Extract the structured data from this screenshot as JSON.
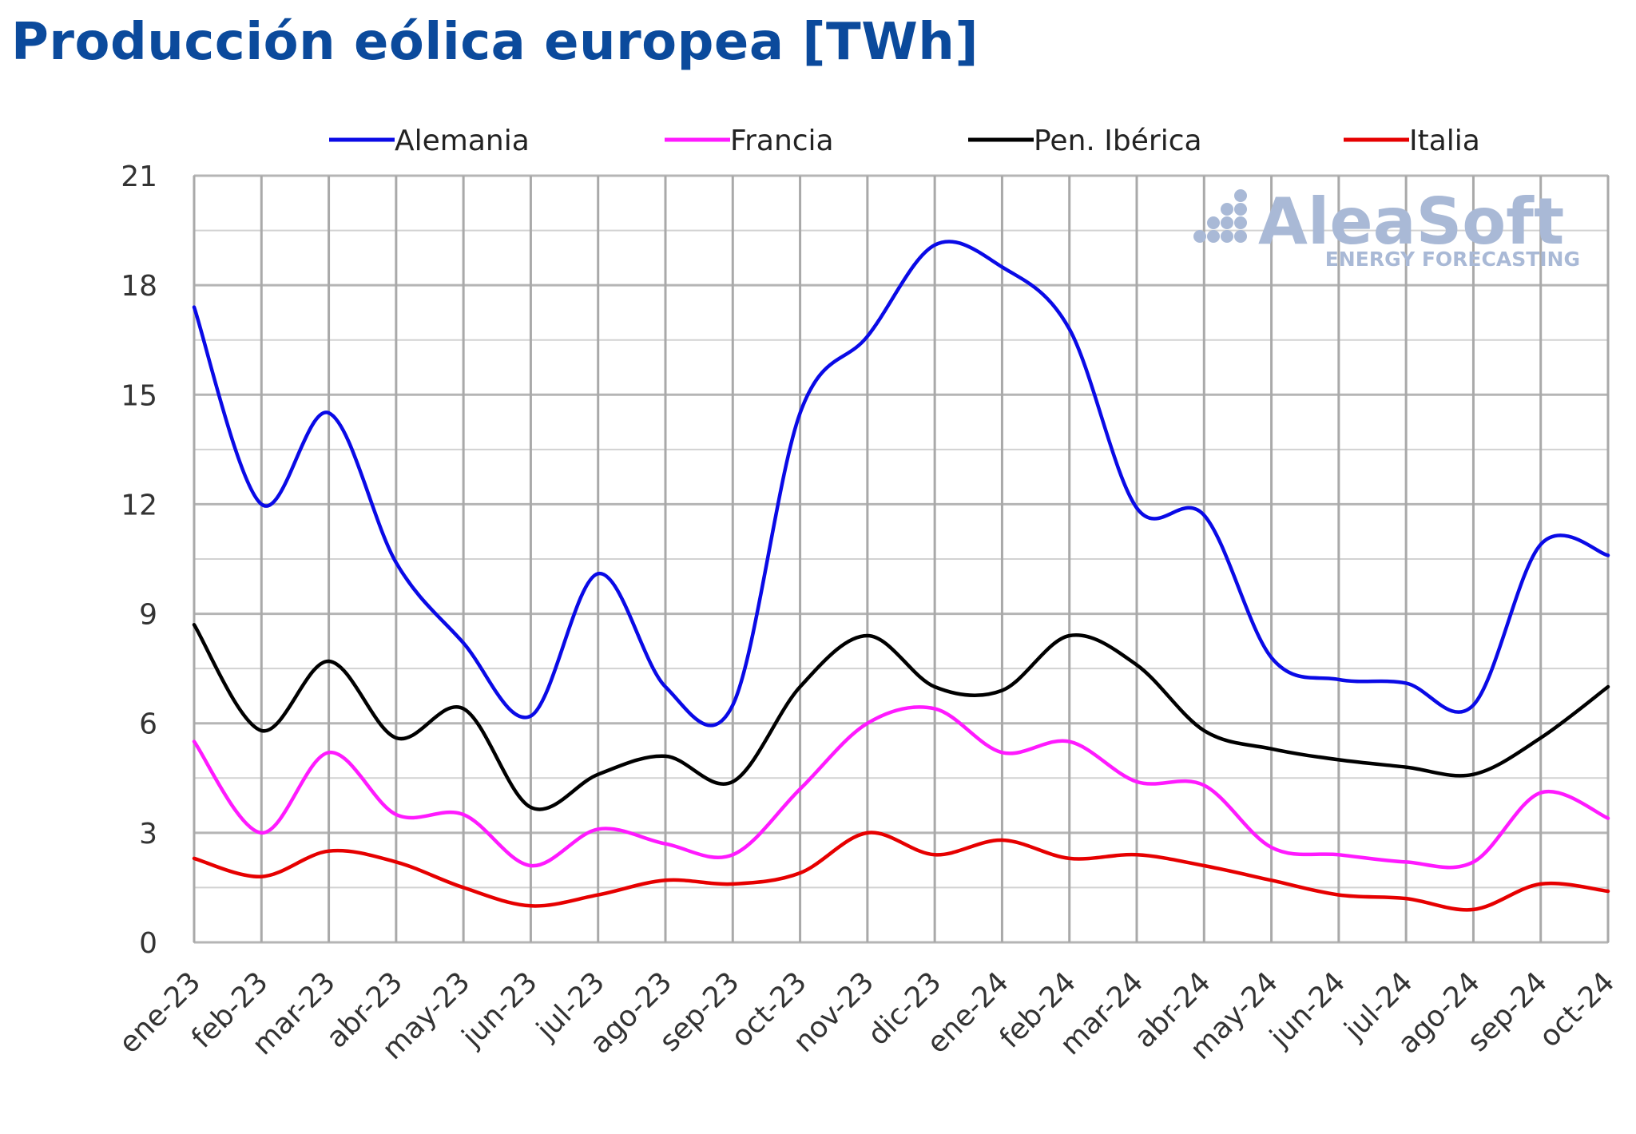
{
  "chart_data": {
    "type": "line",
    "title": "Producción eólica europea [TWh]",
    "xlabel": "",
    "ylabel": "",
    "ylim": [
      0,
      21
    ],
    "yticks": [
      0,
      3,
      6,
      9,
      12,
      15,
      18,
      21
    ],
    "grid": true,
    "legend_position": "top",
    "categories": [
      "ene-23",
      "feb-23",
      "mar-23",
      "abr-23",
      "may-23",
      "jun-23",
      "jul-23",
      "ago-23",
      "sep-23",
      "oct-23",
      "nov-23",
      "dic-23",
      "ene-24",
      "feb-24",
      "mar-24",
      "abr-24",
      "may-24",
      "jun-24",
      "jul-24",
      "ago-24",
      "sep-24",
      "oct-24"
    ],
    "series": [
      {
        "name": "Alemania",
        "color": "#0a0ae6",
        "values": [
          17.4,
          12.0,
          14.5,
          10.4,
          8.2,
          6.2,
          10.1,
          7.0,
          6.5,
          14.5,
          16.6,
          19.1,
          18.5,
          16.8,
          11.9,
          11.7,
          7.8,
          7.2,
          7.1,
          6.5,
          10.9,
          10.6
        ]
      },
      {
        "name": "Francia",
        "color": "#ff1aff",
        "values": [
          5.5,
          3.0,
          5.2,
          3.5,
          3.5,
          2.1,
          3.1,
          2.7,
          2.4,
          4.2,
          6.0,
          6.4,
          5.2,
          5.5,
          4.4,
          4.3,
          2.6,
          2.4,
          2.2,
          2.2,
          4.1,
          3.4
        ]
      },
      {
        "name": "Pen. Ibérica",
        "color": "#000000",
        "values": [
          8.7,
          5.8,
          7.7,
          5.6,
          6.4,
          3.7,
          4.6,
          5.1,
          4.4,
          7.0,
          8.4,
          7.0,
          6.9,
          8.4,
          7.6,
          5.8,
          5.3,
          5.0,
          4.8,
          4.6,
          5.6,
          7.0
        ]
      },
      {
        "name": "Italia",
        "color": "#e60000",
        "values": [
          2.3,
          1.8,
          2.5,
          2.2,
          1.5,
          1.0,
          1.3,
          1.7,
          1.6,
          1.9,
          3.0,
          2.4,
          2.8,
          2.3,
          2.4,
          2.1,
          1.7,
          1.3,
          1.2,
          0.9,
          1.6,
          1.4
        ]
      }
    ]
  },
  "watermark": {
    "brand": "AleaSoft",
    "tagline": "ENERGY FORECASTING",
    "color": "#a9b9d6"
  }
}
